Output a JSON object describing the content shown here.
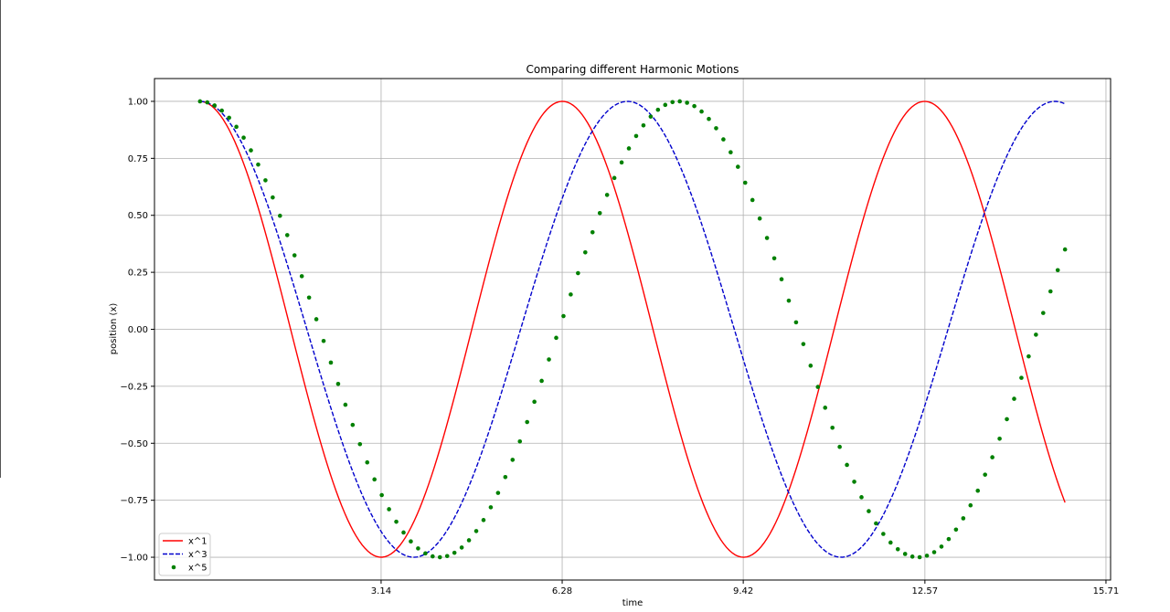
{
  "chart_data": {
    "type": "line",
    "title": "Comparing different Harmonic Motions",
    "xlabel": "time",
    "ylabel": "position (x)",
    "xlim": [
      -0.79,
      15.79
    ],
    "ylim": [
      -1.1,
      1.1
    ],
    "x_ticks": [
      3.14,
      6.28,
      9.42,
      12.57,
      15.71
    ],
    "x_tick_labels": [
      "3.14",
      "6.28",
      "9.42",
      "12.57",
      "15.71"
    ],
    "y_ticks": [
      -1.0,
      -0.75,
      -0.5,
      -0.25,
      0.0,
      0.25,
      0.5,
      0.75,
      1.0
    ],
    "y_tick_labels": [
      "−1.00",
      "−0.75",
      "−0.50",
      "−0.25",
      "0.00",
      "0.25",
      "0.50",
      "0.75",
      "1.00"
    ],
    "grid": true,
    "legend_position": "bottom-left",
    "x_range": [
      0,
      15.0
    ],
    "series": [
      {
        "name": "x^1",
        "color": "#ff0000",
        "style": "solid",
        "marker": "none",
        "n_points": 300,
        "equation": "cos(t)"
      },
      {
        "name": "x^3",
        "color": "#0000cc",
        "style": "dashed",
        "marker": "none",
        "n_points": 300,
        "equation": "cos(0.8477 t)"
      },
      {
        "name": "x^5",
        "color": "#008000",
        "style": "none",
        "marker": "dot",
        "n_points": 120,
        "equation": "cos(0.7569 t)"
      }
    ]
  }
}
